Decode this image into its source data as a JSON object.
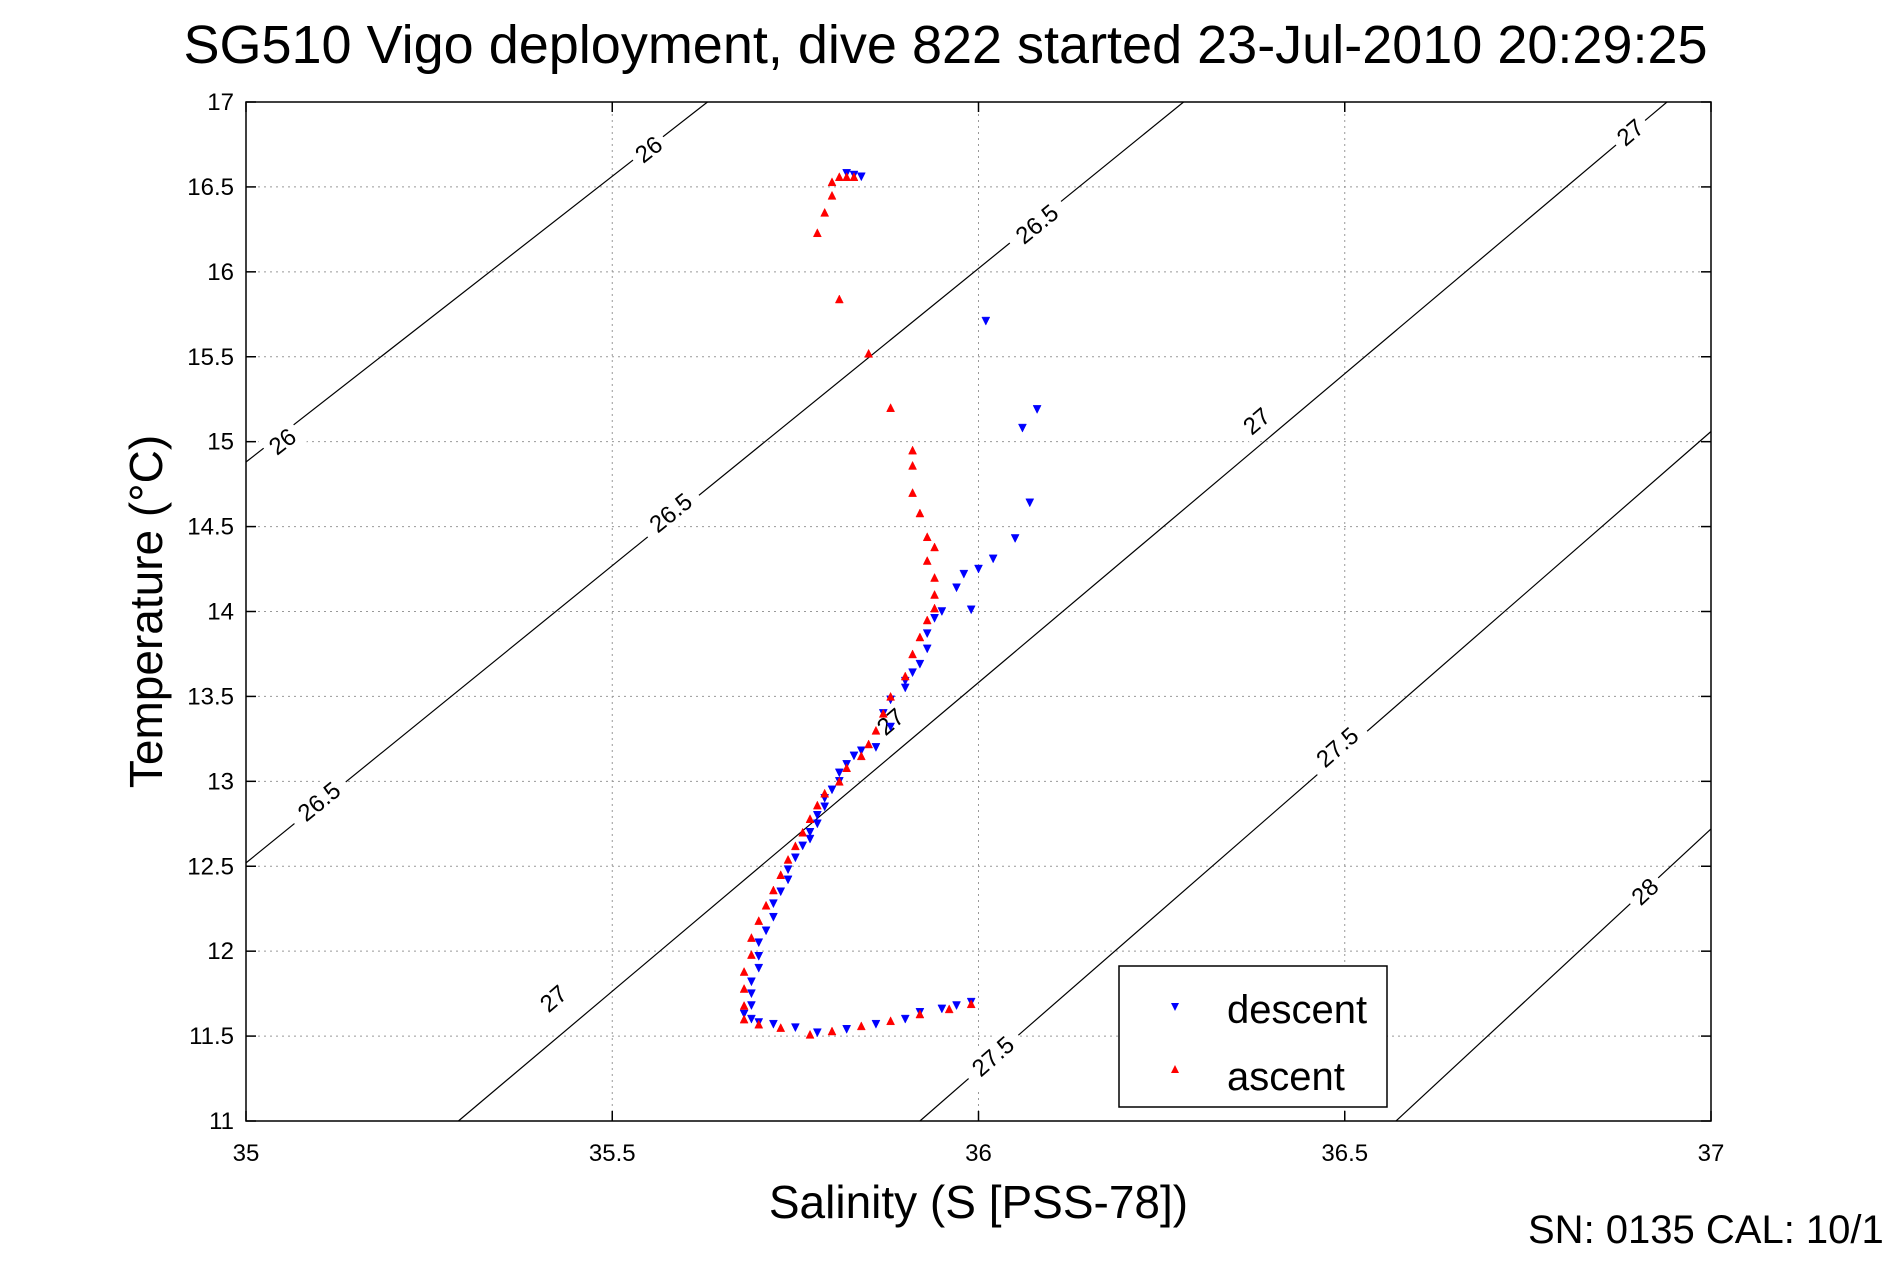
{
  "title": "SG510 Vigo deployment, dive 822 started 23-Jul-2010 20:29:25",
  "footer": "SN: 0135  CAL: 10/1",
  "chart_data": {
    "type": "scatter",
    "xlabel": "Salinity (S [PSS-78])",
    "ylabel": "Temperature (°C)",
    "xlim": [
      35,
      37
    ],
    "ylim": [
      11,
      17
    ],
    "xticks": [
      "35",
      "35.5",
      "36",
      "36.5",
      "37"
    ],
    "yticks": [
      "11",
      "11.5",
      "12",
      "12.5",
      "13",
      "13.5",
      "14",
      "14.5",
      "15",
      "15.5",
      "16",
      "16.5",
      "17"
    ],
    "grid": true,
    "legend_position": "bottom-right",
    "colors": {
      "descent": "#0000ff",
      "ascent": "#ff0000",
      "contour": "#000000"
    },
    "density_contours": [
      {
        "label": "26",
        "points": [
          [
            35.0,
            14.88
          ],
          [
            35.63,
            17.0
          ]
        ]
      },
      {
        "label": "26.5",
        "points": [
          [
            35.0,
            12.52
          ],
          [
            36.28,
            17.0
          ]
        ]
      },
      {
        "label": "27",
        "points": [
          [
            35.29,
            11.0
          ],
          [
            36.94,
            17.0
          ]
        ]
      },
      {
        "label": "27.5",
        "points": [
          [
            35.92,
            11.0
          ],
          [
            37.0,
            15.06
          ]
        ]
      },
      {
        "label": "28",
        "points": [
          [
            36.57,
            11.0
          ],
          [
            37.0,
            12.72
          ]
        ]
      }
    ],
    "contour_labels": [
      {
        "text": "26",
        "x": 35.55,
        "y": 16.72
      },
      {
        "text": "26",
        "x": 35.05,
        "y": 15.0
      },
      {
        "text": "26.5",
        "x": 36.08,
        "y": 16.28
      },
      {
        "text": "26.5",
        "x": 35.58,
        "y": 14.58
      },
      {
        "text": "26.5",
        "x": 35.1,
        "y": 12.88
      },
      {
        "text": "27",
        "x": 36.89,
        "y": 16.82
      },
      {
        "text": "27",
        "x": 36.38,
        "y": 15.12
      },
      {
        "text": "27",
        "x": 35.88,
        "y": 13.35
      },
      {
        "text": "27",
        "x": 35.42,
        "y": 11.72
      },
      {
        "text": "27.5",
        "x": 36.49,
        "y": 13.2
      },
      {
        "text": "27.5",
        "x": 36.02,
        "y": 11.38
      },
      {
        "text": "28",
        "x": 36.91,
        "y": 12.35
      }
    ],
    "series": [
      {
        "name": "descent",
        "marker": "triangle-down",
        "points": [
          [
            35.82,
            16.58
          ],
          [
            35.84,
            16.56
          ],
          [
            35.83,
            16.57
          ],
          [
            36.01,
            15.71
          ],
          [
            36.08,
            15.19
          ],
          [
            36.06,
            15.08
          ],
          [
            36.07,
            14.64
          ],
          [
            36.05,
            14.43
          ],
          [
            36.02,
            14.31
          ],
          [
            36.0,
            14.25
          ],
          [
            35.98,
            14.22
          ],
          [
            35.97,
            14.14
          ],
          [
            35.99,
            14.01
          ],
          [
            35.95,
            14.0
          ],
          [
            35.94,
            13.96
          ],
          [
            35.93,
            13.87
          ],
          [
            35.93,
            13.78
          ],
          [
            35.92,
            13.69
          ],
          [
            35.91,
            13.64
          ],
          [
            35.9,
            13.59
          ],
          [
            35.9,
            13.55
          ],
          [
            35.88,
            13.48
          ],
          [
            35.87,
            13.4
          ],
          [
            35.88,
            13.32
          ],
          [
            35.86,
            13.2
          ],
          [
            35.84,
            13.18
          ],
          [
            35.83,
            13.15
          ],
          [
            35.82,
            13.1
          ],
          [
            35.81,
            13.05
          ],
          [
            35.81,
            13.0
          ],
          [
            35.8,
            12.95
          ],
          [
            35.79,
            12.9
          ],
          [
            35.79,
            12.85
          ],
          [
            35.78,
            12.8
          ],
          [
            35.78,
            12.75
          ],
          [
            35.77,
            12.7
          ],
          [
            35.77,
            12.66
          ],
          [
            35.76,
            12.62
          ],
          [
            35.75,
            12.55
          ],
          [
            35.74,
            12.48
          ],
          [
            35.74,
            12.42
          ],
          [
            35.73,
            12.35
          ],
          [
            35.72,
            12.28
          ],
          [
            35.72,
            12.2
          ],
          [
            35.71,
            12.12
          ],
          [
            35.7,
            12.05
          ],
          [
            35.7,
            11.97
          ],
          [
            35.7,
            11.9
          ],
          [
            35.69,
            11.82
          ],
          [
            35.69,
            11.75
          ],
          [
            35.69,
            11.68
          ],
          [
            35.68,
            11.63
          ],
          [
            35.69,
            11.6
          ],
          [
            35.7,
            11.58
          ],
          [
            35.72,
            11.57
          ],
          [
            35.75,
            11.55
          ],
          [
            35.78,
            11.52
          ],
          [
            35.82,
            11.54
          ],
          [
            35.86,
            11.57
          ],
          [
            35.9,
            11.6
          ],
          [
            35.92,
            11.64
          ],
          [
            35.95,
            11.66
          ],
          [
            35.97,
            11.68
          ],
          [
            35.99,
            11.7
          ]
        ]
      },
      {
        "name": "ascent",
        "marker": "triangle-up",
        "points": [
          [
            35.78,
            16.23
          ],
          [
            35.79,
            16.35
          ],
          [
            35.8,
            16.45
          ],
          [
            35.8,
            16.53
          ],
          [
            35.81,
            16.56
          ],
          [
            35.82,
            16.56
          ],
          [
            35.83,
            16.56
          ],
          [
            35.81,
            15.84
          ],
          [
            35.85,
            15.52
          ],
          [
            35.88,
            15.2
          ],
          [
            35.91,
            14.95
          ],
          [
            35.91,
            14.86
          ],
          [
            35.91,
            14.7
          ],
          [
            35.92,
            14.58
          ],
          [
            35.93,
            14.44
          ],
          [
            35.94,
            14.38
          ],
          [
            35.93,
            14.3
          ],
          [
            35.94,
            14.2
          ],
          [
            35.94,
            14.1
          ],
          [
            35.94,
            14.02
          ],
          [
            35.93,
            13.95
          ],
          [
            35.92,
            13.85
          ],
          [
            35.91,
            13.75
          ],
          [
            35.9,
            13.62
          ],
          [
            35.88,
            13.5
          ],
          [
            35.87,
            13.4
          ],
          [
            35.86,
            13.3
          ],
          [
            35.85,
            13.22
          ],
          [
            35.84,
            13.15
          ],
          [
            35.82,
            13.08
          ],
          [
            35.81,
            13.0
          ],
          [
            35.79,
            12.93
          ],
          [
            35.78,
            12.86
          ],
          [
            35.77,
            12.78
          ],
          [
            35.76,
            12.7
          ],
          [
            35.75,
            12.62
          ],
          [
            35.74,
            12.54
          ],
          [
            35.73,
            12.45
          ],
          [
            35.72,
            12.36
          ],
          [
            35.71,
            12.27
          ],
          [
            35.7,
            12.18
          ],
          [
            35.69,
            12.08
          ],
          [
            35.69,
            11.98
          ],
          [
            35.68,
            11.88
          ],
          [
            35.68,
            11.78
          ],
          [
            35.68,
            11.68
          ],
          [
            35.68,
            11.6
          ],
          [
            35.7,
            11.57
          ],
          [
            35.73,
            11.55
          ],
          [
            35.77,
            11.51
          ],
          [
            35.8,
            11.53
          ],
          [
            35.84,
            11.56
          ],
          [
            35.88,
            11.59
          ],
          [
            35.92,
            11.63
          ],
          [
            35.96,
            11.66
          ],
          [
            35.99,
            11.69
          ]
        ]
      }
    ]
  }
}
